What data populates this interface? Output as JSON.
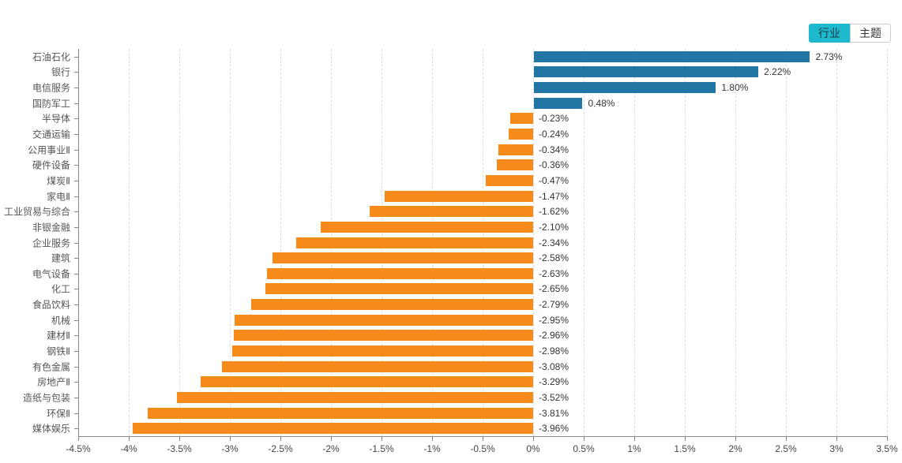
{
  "toolbar": {
    "industry_label": "行业",
    "theme_label": "主题"
  },
  "colors": {
    "positive_bar": "#2176a3",
    "negative_bar": "#f68a1a",
    "toggle_active_bg": "#1eb9cd",
    "grid_line": "#dddddd",
    "axis_line": "#888888"
  },
  "chart_data": {
    "type": "bar",
    "orientation": "horizontal",
    "title": "",
    "xlabel": "",
    "ylabel": "",
    "xlim": [
      -4.5,
      3.5
    ],
    "grid": true,
    "legend": null,
    "categories": [
      "石油石化",
      "银行",
      "电信服务",
      "国防军工",
      "半导体",
      "交通运输",
      "公用事业Ⅱ",
      "硬件设备",
      "煤炭Ⅱ",
      "家电Ⅱ",
      "工业贸易与综合",
      "非银金融",
      "企业服务",
      "建筑",
      "电气设备",
      "化工",
      "食品饮料",
      "机械",
      "建材Ⅱ",
      "钢铁Ⅱ",
      "有色金属",
      "房地产Ⅱ",
      "造纸与包装",
      "环保Ⅱ",
      "媒体娱乐"
    ],
    "values": [
      2.73,
      2.22,
      1.8,
      0.48,
      -0.23,
      -0.24,
      -0.34,
      -0.36,
      -0.47,
      -1.47,
      -1.62,
      -2.1,
      -2.34,
      -2.58,
      -2.63,
      -2.65,
      -2.79,
      -2.95,
      -2.96,
      -2.98,
      -3.08,
      -3.29,
      -3.52,
      -3.81,
      -3.96
    ],
    "value_labels": [
      "2.73%",
      "2.22%",
      "1.80%",
      "0.48%",
      "-0.23%",
      "-0.24%",
      "-0.34%",
      "-0.36%",
      "-0.47%",
      "-1.47%",
      "-1.62%",
      "-2.10%",
      "-2.34%",
      "-2.58%",
      "-2.63%",
      "-2.65%",
      "-2.79%",
      "-2.95%",
      "-2.96%",
      "-2.98%",
      "-3.08%",
      "-3.29%",
      "-3.52%",
      "-3.81%",
      "-3.96%"
    ],
    "x_tick_values": [
      -4.5,
      -4,
      -3.5,
      -3,
      -2.5,
      -2,
      -1.5,
      -1,
      -0.5,
      0,
      0.5,
      1,
      1.5,
      2,
      2.5,
      3,
      3.5
    ],
    "x_tick_labels": [
      "-4.5%",
      "-4%",
      "-3.5%",
      "-3%",
      "-2.5%",
      "-2%",
      "-1.5%",
      "-1%",
      "-0.5%",
      "0%",
      "0.5%",
      "1%",
      "1.5%",
      "2%",
      "2.5%",
      "3%",
      "3.5%"
    ]
  }
}
